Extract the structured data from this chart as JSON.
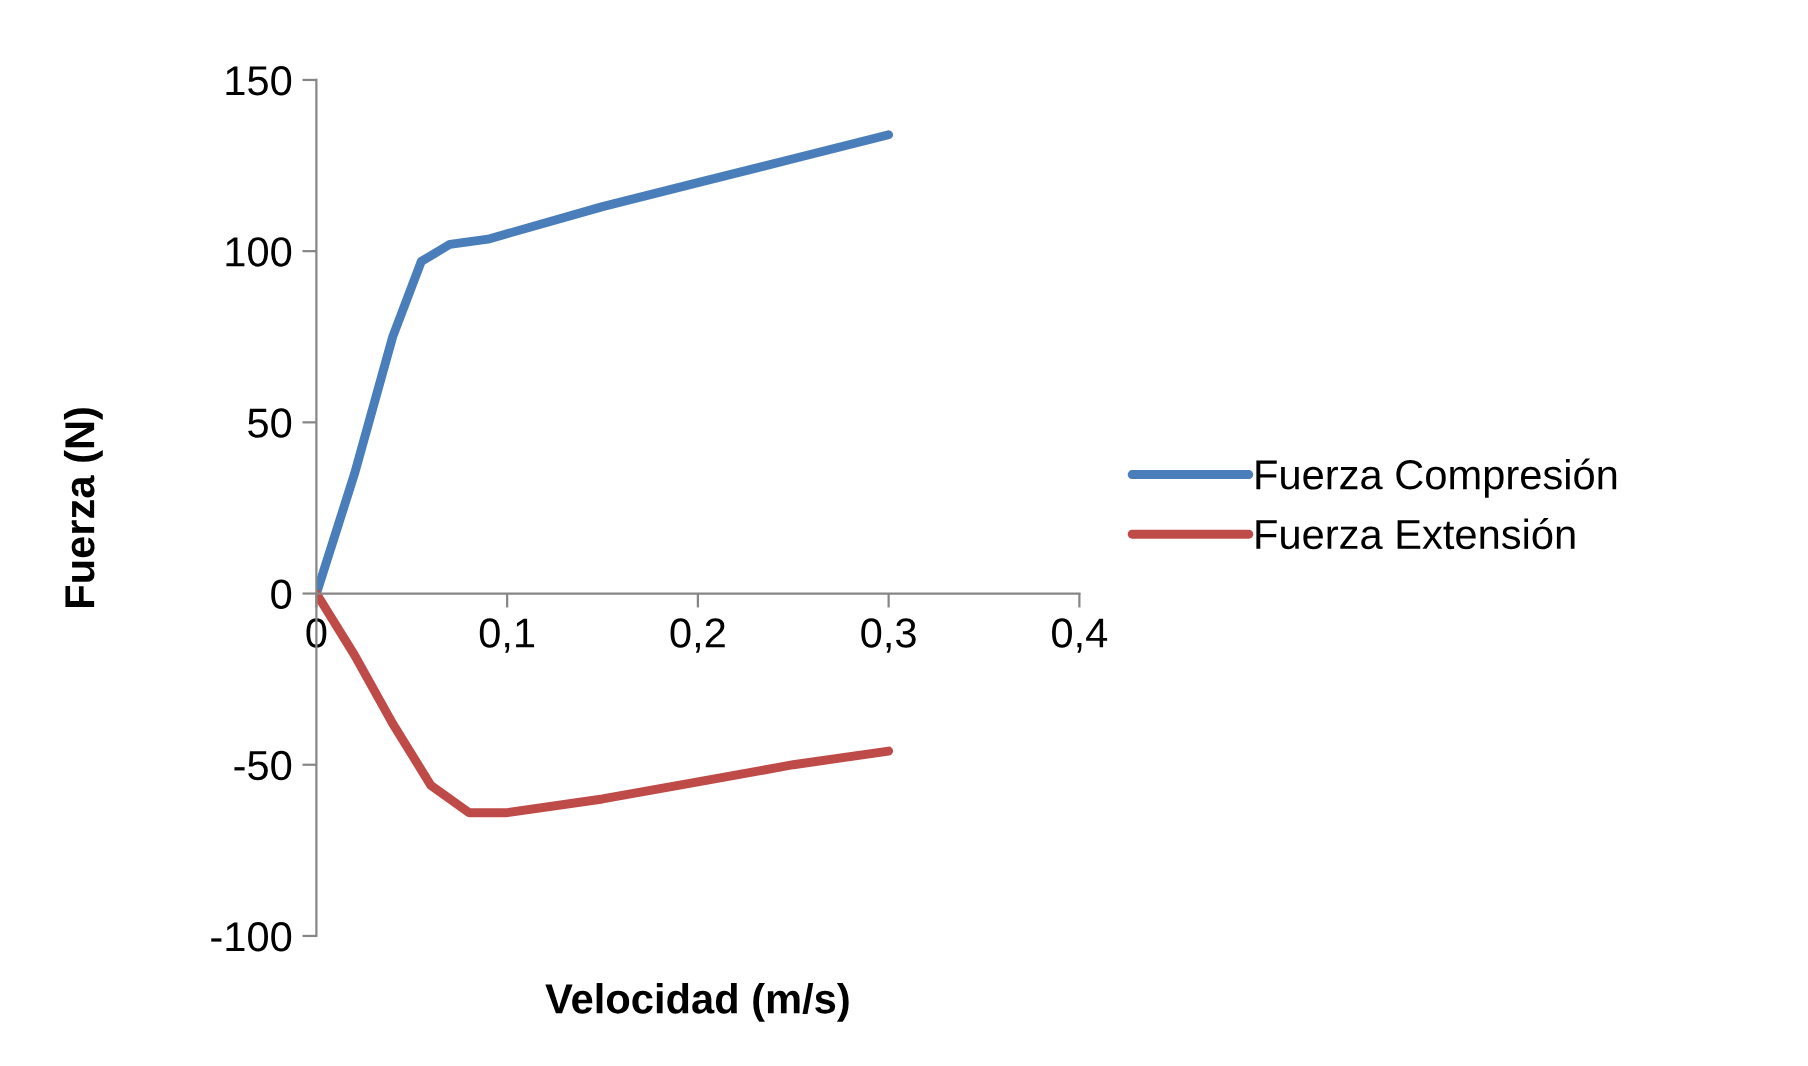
{
  "chart_data": {
    "type": "line",
    "xlabel": "Velocidad (m/s)",
    "ylabel": "Fuerza (N)",
    "xlim": [
      0,
      0.4
    ],
    "xticks": [
      {
        "value": 0,
        "label": "0"
      },
      {
        "value": 0.1,
        "label": "0,1"
      },
      {
        "value": 0.2,
        "label": "0,2"
      },
      {
        "value": 0.3,
        "label": "0,3"
      },
      {
        "value": 0.4,
        "label": "0,4"
      }
    ],
    "ylim": [
      -100,
      150
    ],
    "yticks": [
      -100,
      -50,
      0,
      50,
      100,
      150
    ],
    "grid": false,
    "legend": "right",
    "marker": "none",
    "line_style": "solid",
    "series": [
      {
        "name": "Fuerza Compresión",
        "color": "#4a7ebb",
        "x": [
          0,
          0.02,
          0.04,
          0.055,
          0.07,
          0.09,
          0.15,
          0.2,
          0.25,
          0.3
        ],
        "values": [
          0,
          35,
          75,
          97,
          102,
          103.5,
          113,
          120,
          127,
          134
        ]
      },
      {
        "name": "Fuerza Extensión",
        "color": "#be4b48",
        "x": [
          0,
          0.02,
          0.04,
          0.06,
          0.08,
          0.1,
          0.15,
          0.2,
          0.25,
          0.3
        ],
        "values": [
          0,
          -18,
          -38,
          -56,
          -64,
          -64,
          -60,
          -55,
          -50,
          -46
        ]
      }
    ]
  }
}
